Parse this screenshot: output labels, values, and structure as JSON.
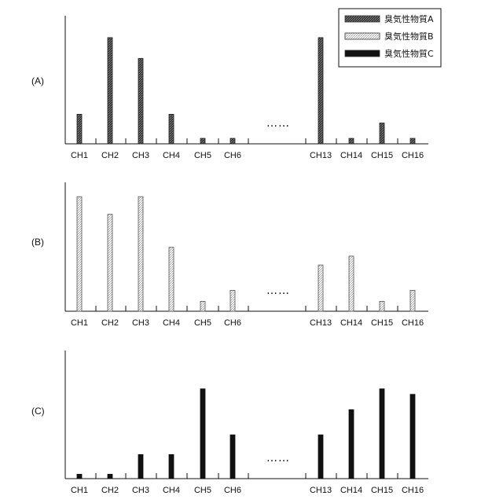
{
  "chart_data": [
    {
      "type": "bar",
      "panel_label": "(A)",
      "series_name": "臭気性物質A",
      "categories": [
        "CH1",
        "CH2",
        "CH3",
        "CH4",
        "CH5",
        "CH6",
        "CH13",
        "CH14",
        "CH15",
        "CH16"
      ],
      "values": [
        27,
        97,
        78,
        27,
        5,
        5,
        97,
        5,
        19,
        5
      ],
      "ylim": [
        0,
        117
      ],
      "gap_marker": "……",
      "grid": false
    },
    {
      "type": "bar",
      "panel_label": "(B)",
      "series_name": "臭気性物質B",
      "categories": [
        "CH1",
        "CH2",
        "CH3",
        "CH4",
        "CH5",
        "CH6",
        "CH13",
        "CH14",
        "CH15",
        "CH16"
      ],
      "values": [
        104,
        88,
        104,
        58,
        9,
        19,
        42,
        50,
        9,
        19
      ],
      "ylim": [
        0,
        117
      ],
      "gap_marker": "……",
      "grid": false
    },
    {
      "type": "bar",
      "panel_label": "(C)",
      "series_name": "臭気性物質C",
      "categories": [
        "CH1",
        "CH2",
        "CH3",
        "CH4",
        "CH5",
        "CH6",
        "CH13",
        "CH14",
        "CH15",
        "CH16"
      ],
      "values": [
        4,
        4,
        22,
        22,
        82,
        40,
        40,
        63,
        82,
        77
      ],
      "ylim": [
        0,
        117
      ],
      "gap_marker": "……",
      "grid": false
    }
  ],
  "legend": {
    "placement": "top-right",
    "items": [
      {
        "label": "臭気性物質A",
        "pattern": "dense-dark-hatch",
        "color": "#444444"
      },
      {
        "label": "臭気性物質B",
        "pattern": "light-dotted",
        "color": "#f4f4f4"
      },
      {
        "label": "臭気性物質C",
        "pattern": "solid-black",
        "color": "#111111"
      }
    ]
  }
}
